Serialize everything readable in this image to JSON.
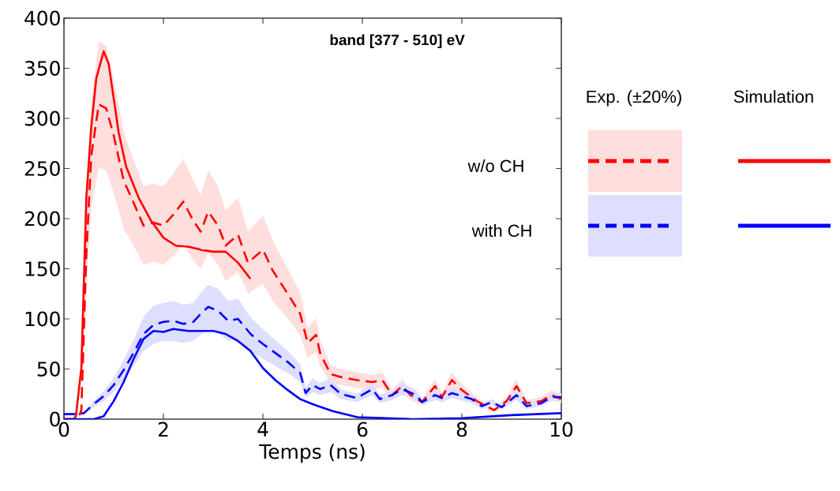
{
  "chart_data": {
    "type": "line",
    "title": "band [377 - 510] eV",
    "xlabel": "Temps (ns)",
    "xlim": [
      0,
      10
    ],
    "ylim": [
      0,
      400
    ],
    "xticks": [
      0,
      2,
      4,
      6,
      8,
      10
    ],
    "yticks": [
      0,
      50,
      100,
      150,
      200,
      250,
      300,
      350,
      400
    ],
    "grid": false,
    "marker": "none",
    "annotations": [
      "Exp. (±20%)",
      "Simulation",
      "w/o CH",
      "with CH"
    ],
    "series": [
      {
        "color": "#ff0000",
        "line_style": "dashed",
        "x": [
          0,
          0.2,
          0.3,
          0.35,
          0.45,
          0.55,
          0.7,
          0.85,
          1.0,
          1.2,
          1.4,
          1.6,
          1.8,
          2.0,
          2.2,
          2.4,
          2.6,
          2.75,
          2.9,
          3.1,
          3.25,
          3.5,
          3.7,
          4.0,
          4.2,
          4.5,
          4.75,
          4.9,
          5.07,
          5.15,
          5.36,
          5.57,
          5.89,
          6.2,
          6.4,
          6.6,
          6.8,
          6.97,
          7.2,
          7.46,
          7.6,
          7.8,
          8.0,
          8.3,
          8.65,
          8.9,
          9.1,
          9.3,
          9.6,
          9.8,
          10
        ],
        "values": [
          0,
          0,
          2,
          9,
          165,
          263,
          314,
          310,
          283,
          238,
          216,
          193,
          196,
          193,
          204,
          217,
          198,
          187,
          207,
          193,
          173,
          184,
          156,
          169,
          148,
          125,
          105,
          76,
          84,
          66,
          45,
          42,
          39,
          37,
          39,
          24,
          33,
          24,
          17,
          33,
          22,
          39,
          29,
          18,
          9,
          18,
          33,
          16,
          18,
          24,
          20
        ],
        "lower": [
          0,
          0,
          2,
          7,
          132,
          210,
          251,
          248,
          226,
          190,
          173,
          154,
          157,
          154,
          163,
          174,
          158,
          150,
          166,
          154,
          138,
          147,
          125,
          135,
          118,
          100,
          84,
          61,
          67,
          53,
          36,
          34,
          31,
          30,
          31,
          19,
          26,
          19,
          14,
          26,
          18,
          31,
          23,
          14,
          7,
          14,
          26,
          13,
          14,
          19,
          16
        ],
        "upper": [
          0,
          0,
          2,
          11,
          198,
          316,
          377,
          372,
          340,
          286,
          259,
          232,
          235,
          232,
          245,
          260,
          238,
          224,
          248,
          232,
          208,
          221,
          187,
          203,
          178,
          150,
          126,
          91,
          101,
          79,
          54,
          50,
          47,
          44,
          47,
          29,
          40,
          29,
          20,
          40,
          26,
          47,
          35,
          22,
          11,
          22,
          40,
          19,
          22,
          29,
          24
        ]
      },
      {
        "color": "#ff0000",
        "line_style": "solid",
        "x": [
          0,
          0.2,
          0.24,
          0.35,
          0.45,
          0.55,
          0.65,
          0.8,
          0.9,
          1.0,
          1.1,
          1.25,
          1.5,
          1.75,
          2.0,
          2.25,
          2.5,
          2.75,
          3.0,
          3.25,
          3.5,
          3.75
        ],
        "values": [
          0,
          0,
          3,
          51,
          221,
          292,
          340,
          367,
          354,
          320,
          286,
          252,
          221,
          198,
          181,
          173,
          172,
          169,
          167,
          167,
          156,
          140
        ]
      },
      {
        "color": "#0000ff",
        "line_style": "dashed",
        "x": [
          0,
          0.2,
          0.4,
          0.6,
          0.8,
          1.0,
          1.2,
          1.4,
          1.6,
          1.8,
          2.0,
          2.2,
          2.4,
          2.6,
          2.75,
          2.9,
          3.1,
          3.3,
          3.5,
          3.75,
          4.0,
          4.25,
          4.5,
          4.75,
          4.86,
          5.0,
          5.15,
          5.36,
          5.57,
          5.89,
          6.2,
          6.35,
          6.6,
          6.8,
          7.08,
          7.2,
          7.46,
          7.6,
          7.8,
          8.2,
          8.4,
          8.6,
          8.8,
          9.1,
          9.3,
          9.6,
          9.8,
          10
        ],
        "values": [
          5,
          5,
          6,
          15,
          23,
          34,
          49,
          66,
          85,
          94,
          97,
          98,
          95,
          97,
          105,
          112,
          108,
          98,
          100,
          85,
          75,
          66,
          57,
          46,
          26,
          34,
          30,
          34,
          25,
          21,
          30,
          20,
          24,
          30,
          24,
          17,
          24,
          21,
          26,
          20,
          13,
          17,
          12,
          24,
          13,
          16,
          22,
          22
        ],
        "lower": [
          4,
          4,
          5,
          12,
          18,
          27,
          39,
          53,
          68,
          75,
          78,
          78,
          76,
          78,
          84,
          90,
          86,
          78,
          80,
          68,
          60,
          53,
          46,
          37,
          21,
          27,
          24,
          27,
          20,
          17,
          24,
          16,
          19,
          24,
          19,
          14,
          19,
          17,
          21,
          16,
          10,
          14,
          10,
          19,
          10,
          13,
          18,
          18
        ],
        "upper": [
          6,
          6,
          7,
          18,
          28,
          41,
          59,
          79,
          102,
          113,
          116,
          118,
          114,
          116,
          126,
          134,
          130,
          118,
          120,
          102,
          90,
          79,
          68,
          55,
          31,
          41,
          36,
          41,
          30,
          25,
          36,
          24,
          29,
          36,
          29,
          20,
          29,
          25,
          31,
          24,
          16,
          20,
          14,
          29,
          16,
          19,
          26,
          26
        ]
      },
      {
        "color": "#0000ff",
        "line_style": "solid",
        "x": [
          0,
          0.6,
          0.8,
          1.0,
          1.2,
          1.4,
          1.6,
          1.8,
          2.0,
          2.2,
          2.5,
          3.0,
          3.25,
          3.5,
          3.75,
          4.0,
          4.25,
          4.5,
          4.75,
          5.0,
          5.4,
          5.9,
          6.5,
          7.0,
          8.0,
          9.0,
          10
        ],
        "values": [
          0,
          0,
          3,
          18,
          37,
          60,
          80,
          88,
          87,
          90,
          88,
          88,
          85,
          78,
          68,
          51,
          39,
          29,
          20,
          15,
          8,
          2,
          1,
          0,
          1,
          4,
          6
        ]
      }
    ]
  }
}
